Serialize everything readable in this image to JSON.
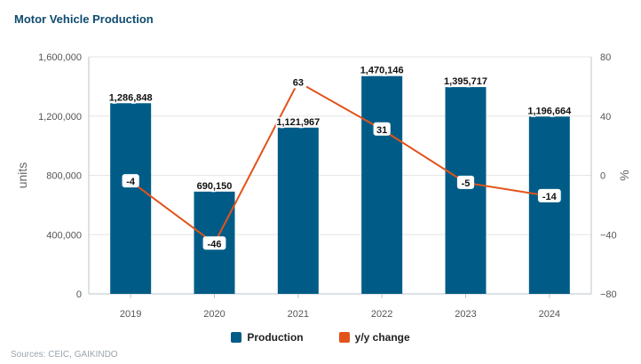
{
  "title": "Motor Vehicle Production",
  "source": "Sources: CEIC, GAIKINDO",
  "colors": {
    "bar": "#005c87",
    "line": "#e2531b",
    "grid": "#e6e6e6"
  },
  "chart_data": {
    "type": "bar",
    "categories": [
      "2019",
      "2020",
      "2021",
      "2022",
      "2023",
      "2024"
    ],
    "series": [
      {
        "name": "Production",
        "type": "bar",
        "axis": "left",
        "values": [
          1286848,
          690150,
          1121967,
          1470146,
          1395717,
          1196664
        ],
        "labels": [
          "1,286,848",
          "690,150",
          "1,121,967",
          "1,470,146",
          "1,395,717",
          "1,196,664"
        ]
      },
      {
        "name": "y/y change",
        "type": "line",
        "axis": "right",
        "values": [
          -4,
          -46,
          63,
          31,
          -5,
          -14
        ],
        "labels": [
          "-4",
          "-46",
          "63",
          "31",
          "-5",
          "-14"
        ]
      }
    ],
    "ylabel": "units",
    "ylabel_right": "%",
    "ylim": [
      0,
      1600000
    ],
    "ylim_right": [
      -80,
      80
    ],
    "yticks": [
      "0",
      "400,000",
      "800,000",
      "1,200,000",
      "1,600,000"
    ],
    "yticks_right": [
      "−80",
      "−40",
      "0",
      "40",
      "80"
    ],
    "grid": true,
    "legend": "bottom-center"
  }
}
